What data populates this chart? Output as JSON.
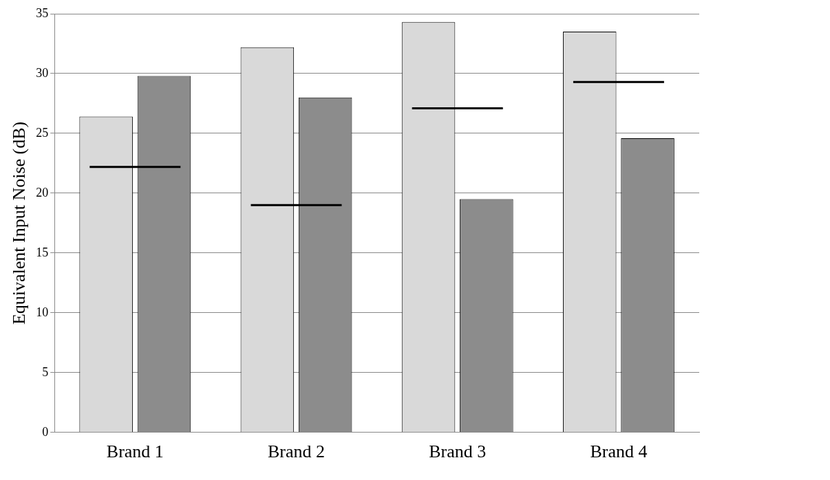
{
  "chart_data": {
    "type": "bar",
    "ylabel": "Equivalent Input Noise (dB)",
    "categories": [
      "Brand 1",
      "Brand 2",
      "Brand 3",
      "Brand 4"
    ],
    "series": [
      {
        "color": "#d9d9d9",
        "values": [
          26.4,
          32.2,
          34.3,
          33.5
        ]
      },
      {
        "color": "#8c8c8c",
        "values": [
          29.8,
          28,
          19.5,
          24.6
        ]
      }
    ],
    "ref_lines": [
      {
        "axis": "y",
        "value": 22.2,
        "color": "#000000"
      },
      {
        "axis": "y",
        "value": 19,
        "color": "#000000"
      },
      {
        "axis": "y",
        "value": 27.1,
        "color": "#000000"
      },
      {
        "axis": "y",
        "value": 29.3,
        "color": "#000000"
      }
    ],
    "ylim": [
      0,
      35
    ],
    "yticks": [
      0,
      5,
      10,
      15,
      20,
      25,
      30,
      35
    ],
    "grid": "y"
  }
}
